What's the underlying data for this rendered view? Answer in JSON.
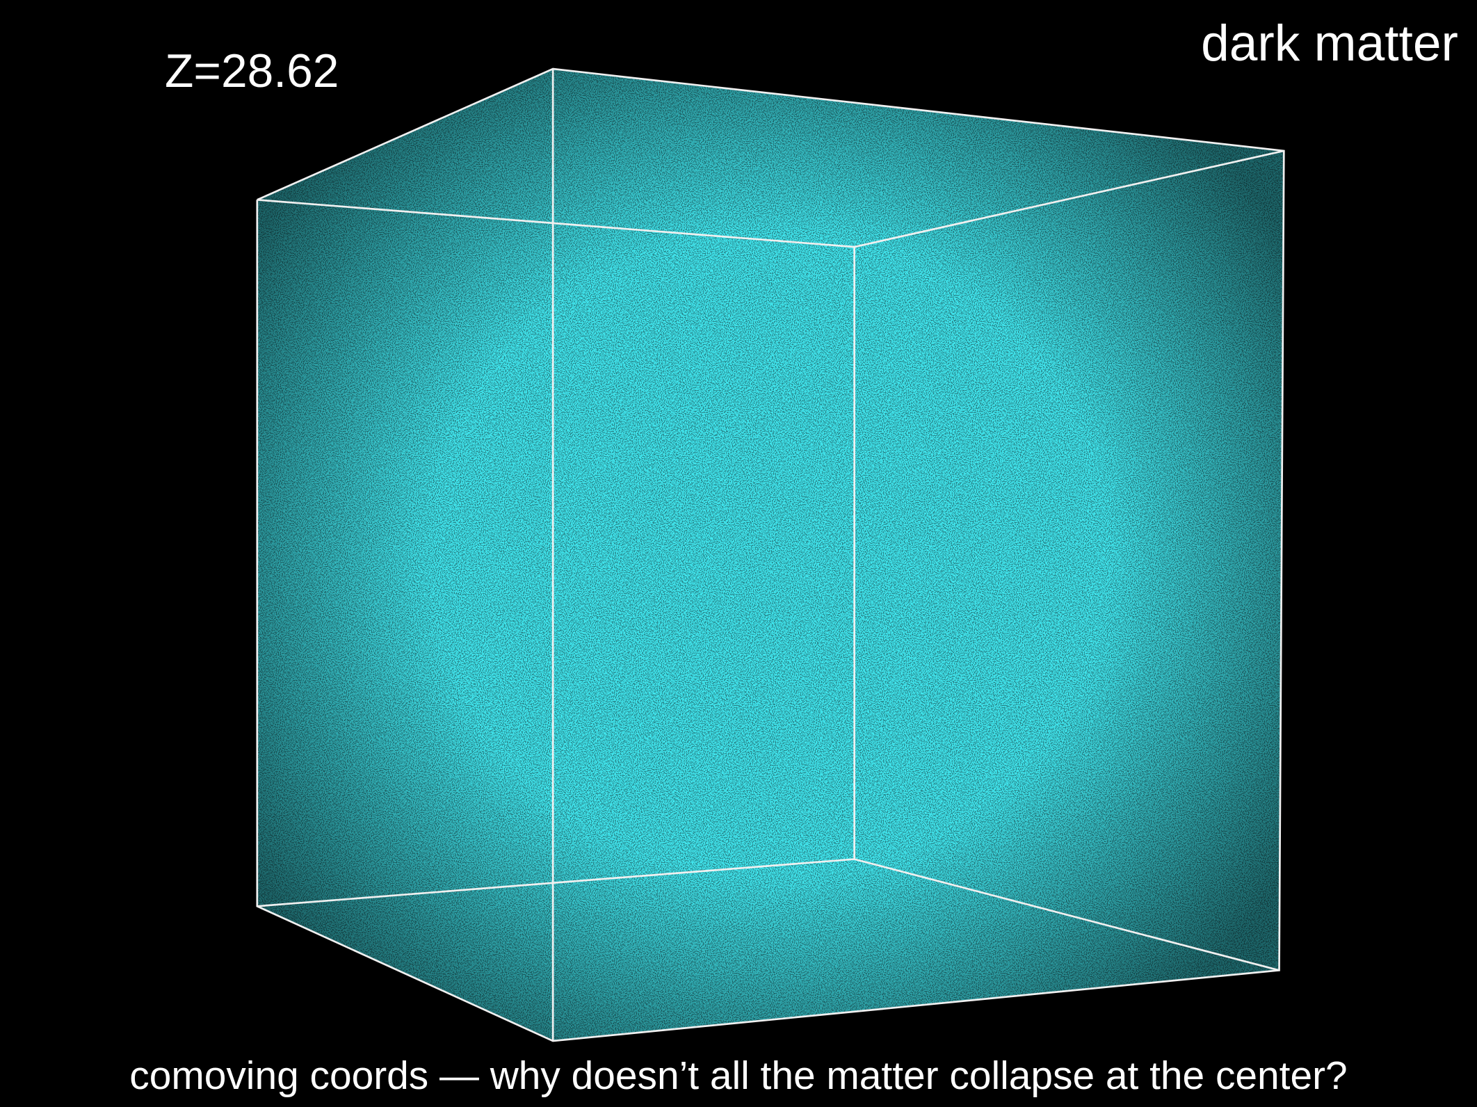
{
  "label": "Z=28.62",
  "title": "dark matter",
  "caption": "comoving coords — why doesn’t all the matter collapse at the center?"
}
